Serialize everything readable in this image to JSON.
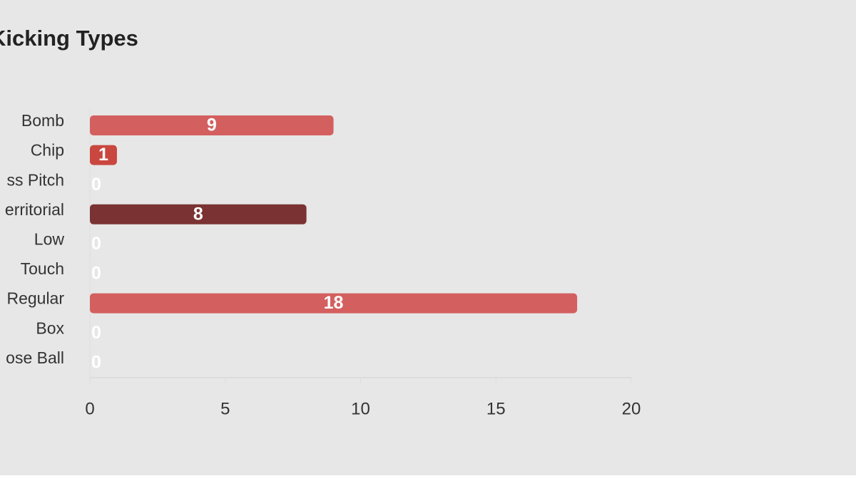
{
  "chart_data": {
    "type": "bar",
    "orientation": "horizontal",
    "title": "Kicking Types",
    "categories": [
      "Bomb",
      "Chip",
      "ss Pitch",
      "erritorial",
      "Low",
      "Touch",
      "Regular",
      "Box",
      "ose Ball"
    ],
    "values": [
      9,
      1,
      0,
      8,
      0,
      0,
      18,
      0,
      0
    ],
    "colors": [
      "#d45f5f",
      "#c9473f",
      "#d45f5f",
      "#7a3232",
      "#d45f5f",
      "#d45f5f",
      "#d45f5f",
      "#d45f5f",
      "#d45f5f"
    ],
    "xlim": [
      0,
      20
    ],
    "xticks": [
      0,
      5,
      10,
      15,
      20
    ]
  }
}
